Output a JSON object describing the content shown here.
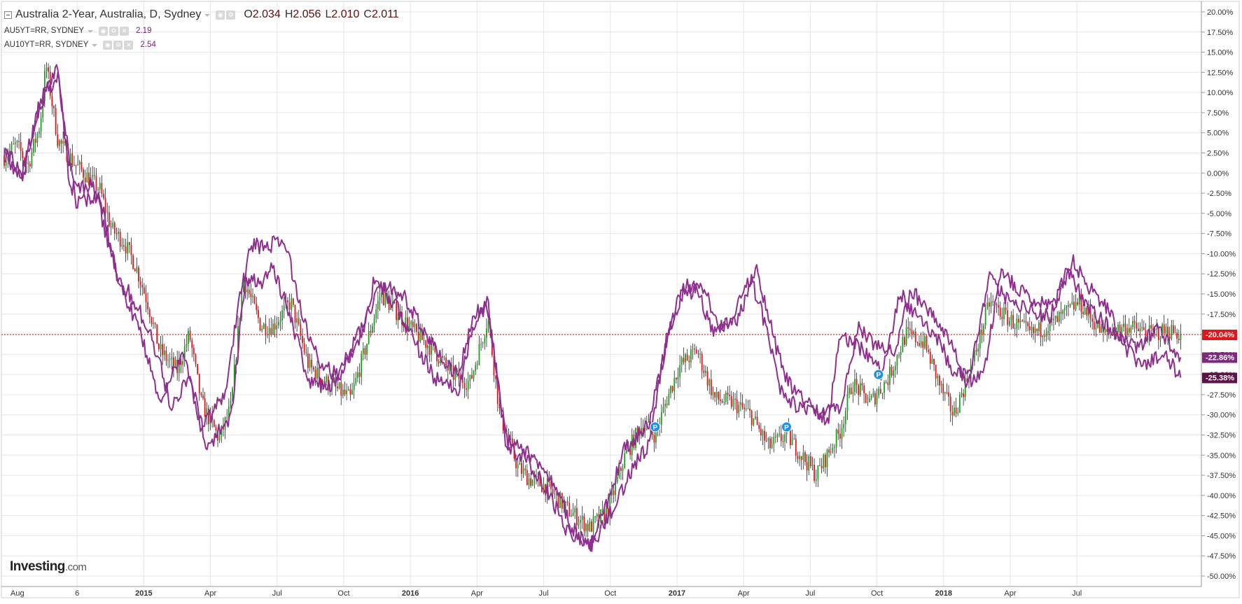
{
  "header": {
    "main_title": "Australia 2-Year, Australia, D, Sydney",
    "ohlc": [
      {
        "label": "O",
        "value": "2.034"
      },
      {
        "label": "H",
        "value": "2.056"
      },
      {
        "label": "L",
        "value": "2.010"
      },
      {
        "label": "C",
        "value": "2.011"
      }
    ],
    "compare": [
      {
        "name": "AU5YT=RR, SYDNEY",
        "value": "2.19"
      },
      {
        "name": "AU10YT=RR, SYDNEY",
        "value": "2.54"
      }
    ]
  },
  "logo": {
    "brand": "Investing",
    "suffix": ".com"
  },
  "colors": {
    "up": "#1aa01a",
    "down": "#e0161b",
    "compare": "#8e2f8e",
    "grid": "#e6e6e6",
    "current_line": "#e0161b",
    "badge_main": "#e0161b",
    "badge_compare_1": "#7d2a7d",
    "badge_compare_2": "#5d1346",
    "event_marker": "#1e90e6"
  },
  "chart_data": {
    "type": "line",
    "x_axis": {
      "ticks": [
        "Aug",
        "6",
        "2015",
        "Apr",
        "Jul",
        "Oct",
        "2016",
        "Apr",
        "Jul",
        "Oct",
        "2017",
        "Apr",
        "Jul",
        "Oct",
        "2018",
        "Apr",
        "Jul"
      ],
      "bold_ticks": [
        "2015",
        "2016",
        "2017",
        "2018"
      ]
    },
    "y_axis": {
      "range": [
        -50,
        20
      ],
      "step": 2.5,
      "unit": "%",
      "position": "right",
      "ticks": [
        "20.00%",
        "17.50%",
        "15.00%",
        "12.50%",
        "10.00%",
        "7.50%",
        "5.00%",
        "2.50%",
        "0.00%",
        "-2.50%",
        "-5.00%",
        "-7.50%",
        "-10.00%",
        "-12.50%",
        "-15.00%",
        "-17.50%",
        "-20.00%",
        "-22.50%",
        "-25.00%",
        "-27.50%",
        "-30.00%",
        "-32.50%",
        "-35.00%",
        "-37.50%",
        "-40.00%",
        "-42.50%",
        "-45.00%",
        "-47.50%",
        "-50.00%"
      ]
    },
    "grid": true,
    "current_values": [
      {
        "series": "Australia 2-Year",
        "label": "-20.04%",
        "value": -20.04
      },
      {
        "series": "AU5YT=RR, SYDNEY",
        "label": "-22.86%",
        "value": -22.86
      },
      {
        "series": "AU10YT=RR, SYDNEY",
        "label": "-25.38%",
        "value": -25.38
      }
    ],
    "series": [
      {
        "name": "Australia 2-Year",
        "style": "candlestick",
        "points": [
          [
            0.0,
            2.0
          ],
          [
            0.01,
            3.5
          ],
          [
            0.02,
            1.0
          ],
          [
            0.03,
            6.0
          ],
          [
            0.035,
            13.5
          ],
          [
            0.045,
            4.0
          ],
          [
            0.06,
            1.0
          ],
          [
            0.08,
            -2.0
          ],
          [
            0.09,
            -7.0
          ],
          [
            0.1,
            -8.5
          ],
          [
            0.11,
            -11.5
          ],
          [
            0.12,
            -16.0
          ],
          [
            0.13,
            -22.0
          ],
          [
            0.145,
            -24.5
          ],
          [
            0.155,
            -20.0
          ],
          [
            0.165,
            -28.5
          ],
          [
            0.18,
            -33.0
          ],
          [
            0.19,
            -29.0
          ],
          [
            0.2,
            -13.0
          ],
          [
            0.215,
            -19.0
          ],
          [
            0.225,
            -19.0
          ],
          [
            0.24,
            -16.0
          ],
          [
            0.255,
            -24.0
          ],
          [
            0.27,
            -26.0
          ],
          [
            0.29,
            -28.0
          ],
          [
            0.3,
            -23.0
          ],
          [
            0.315,
            -15.0
          ],
          [
            0.33,
            -17.5
          ],
          [
            0.345,
            -20.0
          ],
          [
            0.36,
            -22.0
          ],
          [
            0.375,
            -25.0
          ],
          [
            0.39,
            -26.0
          ],
          [
            0.405,
            -18.0
          ],
          [
            0.415,
            -30.0
          ],
          [
            0.43,
            -36.5
          ],
          [
            0.44,
            -38.0
          ],
          [
            0.455,
            -39.0
          ],
          [
            0.47,
            -41.5
          ],
          [
            0.49,
            -44.0
          ],
          [
            0.505,
            -42.0
          ],
          [
            0.52,
            -35.0
          ],
          [
            0.535,
            -31.0
          ],
          [
            0.545,
            -32.5
          ],
          [
            0.555,
            -28.0
          ],
          [
            0.565,
            -24.0
          ],
          [
            0.58,
            -22.0
          ],
          [
            0.595,
            -28.0
          ],
          [
            0.61,
            -28.5
          ],
          [
            0.625,
            -30.0
          ],
          [
            0.64,
            -34.0
          ],
          [
            0.655,
            -32.5
          ],
          [
            0.67,
            -35.5
          ],
          [
            0.68,
            -37.5
          ],
          [
            0.7,
            -32.0
          ],
          [
            0.71,
            -26.0
          ],
          [
            0.725,
            -28.5
          ],
          [
            0.74,
            -25.5
          ],
          [
            0.755,
            -20.0
          ],
          [
            0.77,
            -21.0
          ],
          [
            0.785,
            -27.0
          ],
          [
            0.795,
            -30.0
          ],
          [
            0.81,
            -24.0
          ],
          [
            0.825,
            -16.0
          ],
          [
            0.84,
            -18.0
          ],
          [
            0.86,
            -20.0
          ],
          [
            0.88,
            -18.5
          ],
          [
            0.9,
            -16.0
          ],
          [
            0.92,
            -20.0
          ],
          [
            0.94,
            -19.0
          ],
          [
            0.96,
            -20.0
          ],
          [
            0.975,
            -19.5
          ],
          [
            0.985,
            -20.04
          ]
        ]
      },
      {
        "name": "AU5YT=RR, SYDNEY",
        "style": "line",
        "points": [
          [
            0.0,
            3.0
          ],
          [
            0.015,
            0.0
          ],
          [
            0.03,
            8.5
          ],
          [
            0.045,
            13.0
          ],
          [
            0.055,
            -2.0
          ],
          [
            0.075,
            -1.5
          ],
          [
            0.09,
            -10.5
          ],
          [
            0.1,
            -15.0
          ],
          [
            0.115,
            -20.0
          ],
          [
            0.13,
            -28.5
          ],
          [
            0.15,
            -22.0
          ],
          [
            0.165,
            -32.0
          ],
          [
            0.185,
            -27.0
          ],
          [
            0.2,
            -13.0
          ],
          [
            0.215,
            -13.5
          ],
          [
            0.225,
            -11.5
          ],
          [
            0.24,
            -18.0
          ],
          [
            0.255,
            -26.0
          ],
          [
            0.275,
            -26.5
          ],
          [
            0.3,
            -20.0
          ],
          [
            0.31,
            -13.0
          ],
          [
            0.33,
            -17.0
          ],
          [
            0.34,
            -20.0
          ],
          [
            0.36,
            -25.5
          ],
          [
            0.38,
            -27.0
          ],
          [
            0.395,
            -18.0
          ],
          [
            0.405,
            -16.0
          ],
          [
            0.42,
            -34.0
          ],
          [
            0.44,
            -36.0
          ],
          [
            0.455,
            -39.5
          ],
          [
            0.47,
            -44.0
          ],
          [
            0.49,
            -46.5
          ],
          [
            0.505,
            -41.0
          ],
          [
            0.52,
            -34.0
          ],
          [
            0.54,
            -31.0
          ],
          [
            0.55,
            -24.0
          ],
          [
            0.565,
            -15.0
          ],
          [
            0.58,
            -14.5
          ],
          [
            0.595,
            -20.0
          ],
          [
            0.61,
            -18.0
          ],
          [
            0.625,
            -13.0
          ],
          [
            0.64,
            -20.0
          ],
          [
            0.65,
            -27.0
          ],
          [
            0.665,
            -29.0
          ],
          [
            0.68,
            -30.0
          ],
          [
            0.69,
            -31.0
          ],
          [
            0.7,
            -20.0
          ],
          [
            0.72,
            -22.0
          ],
          [
            0.735,
            -25.0
          ],
          [
            0.75,
            -15.0
          ],
          [
            0.765,
            -18.0
          ],
          [
            0.78,
            -20.0
          ],
          [
            0.795,
            -25.0
          ],
          [
            0.81,
            -24.0
          ],
          [
            0.825,
            -13.0
          ],
          [
            0.84,
            -15.5
          ],
          [
            0.86,
            -17.0
          ],
          [
            0.875,
            -18.0
          ],
          [
            0.89,
            -12.0
          ],
          [
            0.905,
            -16.0
          ],
          [
            0.92,
            -18.5
          ],
          [
            0.935,
            -20.5
          ],
          [
            0.95,
            -22.0
          ],
          [
            0.965,
            -19.0
          ],
          [
            0.985,
            -22.86
          ]
        ]
      },
      {
        "name": "AU10YT=RR, SYDNEY",
        "style": "line",
        "points": [
          [
            0.0,
            2.5
          ],
          [
            0.015,
            -1.0
          ],
          [
            0.03,
            9.0
          ],
          [
            0.045,
            12.0
          ],
          [
            0.06,
            -3.5
          ],
          [
            0.08,
            -3.0
          ],
          [
            0.095,
            -13.0
          ],
          [
            0.11,
            -16.0
          ],
          [
            0.125,
            -21.0
          ],
          [
            0.14,
            -29.0
          ],
          [
            0.155,
            -25.0
          ],
          [
            0.17,
            -34.0
          ],
          [
            0.19,
            -30.0
          ],
          [
            0.205,
            -9.0
          ],
          [
            0.22,
            -9.0
          ],
          [
            0.235,
            -8.5
          ],
          [
            0.25,
            -18.0
          ],
          [
            0.265,
            -24.0
          ],
          [
            0.28,
            -25.0
          ],
          [
            0.3,
            -19.0
          ],
          [
            0.315,
            -13.5
          ],
          [
            0.335,
            -15.5
          ],
          [
            0.35,
            -19.0
          ],
          [
            0.365,
            -23.0
          ],
          [
            0.38,
            -25.0
          ],
          [
            0.395,
            -17.0
          ],
          [
            0.405,
            -17.0
          ],
          [
            0.42,
            -33.0
          ],
          [
            0.44,
            -35.0
          ],
          [
            0.46,
            -38.0
          ],
          [
            0.475,
            -44.0
          ],
          [
            0.49,
            -46.5
          ],
          [
            0.505,
            -43.0
          ],
          [
            0.525,
            -37.0
          ],
          [
            0.54,
            -33.5
          ],
          [
            0.555,
            -20.0
          ],
          [
            0.57,
            -14.0
          ],
          [
            0.585,
            -14.5
          ],
          [
            0.6,
            -19.0
          ],
          [
            0.615,
            -18.0
          ],
          [
            0.63,
            -12.0
          ],
          [
            0.645,
            -21.0
          ],
          [
            0.655,
            -25.5
          ],
          [
            0.67,
            -28.5
          ],
          [
            0.685,
            -30.0
          ],
          [
            0.7,
            -29.0
          ],
          [
            0.715,
            -19.0
          ],
          [
            0.73,
            -21.5
          ],
          [
            0.745,
            -22.0
          ],
          [
            0.76,
            -14.5
          ],
          [
            0.775,
            -17.5
          ],
          [
            0.79,
            -20.0
          ],
          [
            0.805,
            -26.0
          ],
          [
            0.82,
            -25.0
          ],
          [
            0.835,
            -12.0
          ],
          [
            0.85,
            -14.5
          ],
          [
            0.865,
            -16.0
          ],
          [
            0.88,
            -16.5
          ],
          [
            0.895,
            -11.0
          ],
          [
            0.91,
            -14.5
          ],
          [
            0.925,
            -17.0
          ],
          [
            0.94,
            -22.0
          ],
          [
            0.955,
            -24.0
          ],
          [
            0.97,
            -22.0
          ],
          [
            0.985,
            -25.38
          ]
        ]
      }
    ],
    "event_markers": [
      {
        "label": "P",
        "x": 0.545,
        "y": -31.5
      },
      {
        "label": "P",
        "x": 0.655,
        "y": -31.5
      },
      {
        "label": "P",
        "x": 0.732,
        "y": -25.0
      }
    ]
  }
}
